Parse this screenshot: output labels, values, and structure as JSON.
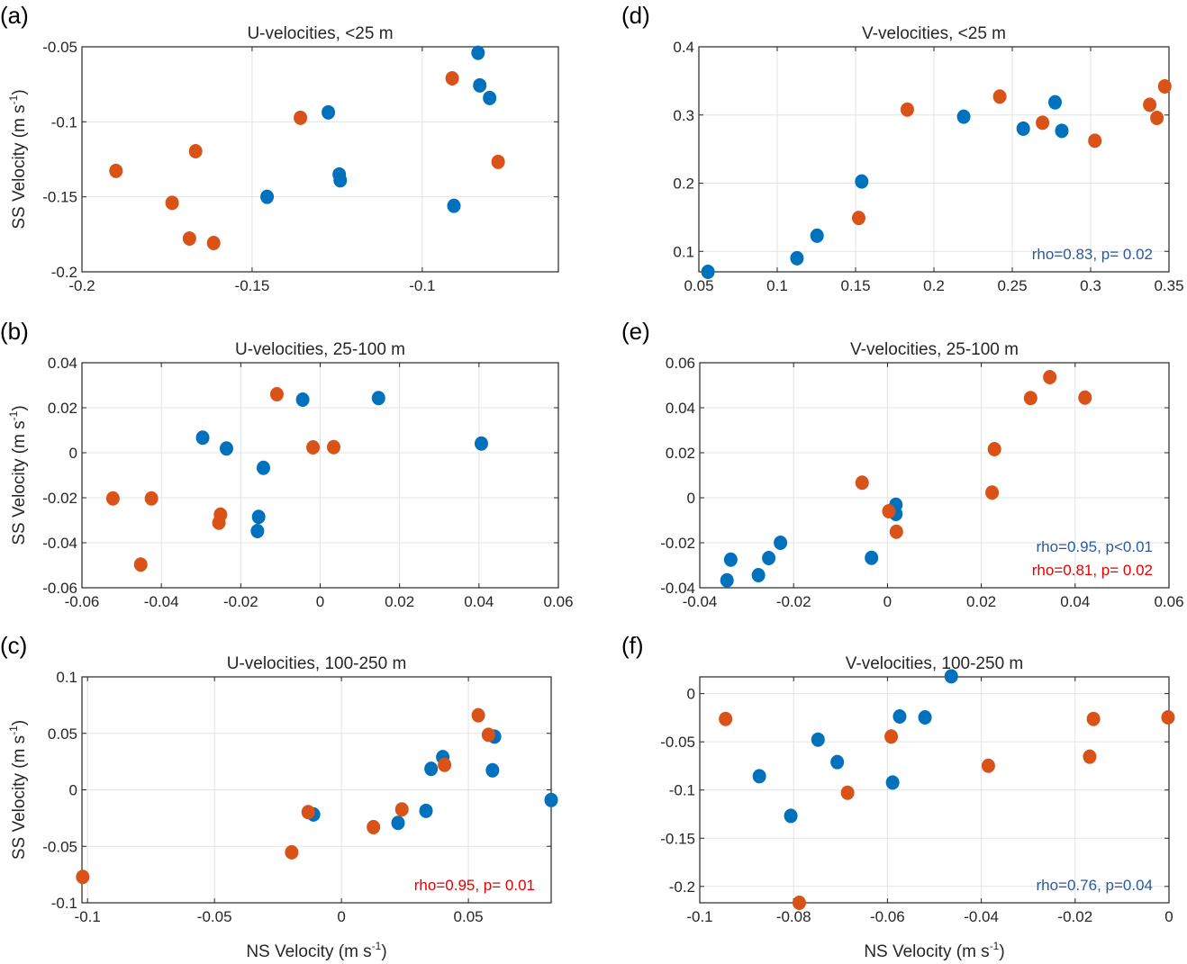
{
  "figure": {
    "colors": {
      "series_blue": "#0072BD",
      "series_orange": "#D95319",
      "annot_blue": "#2C5A99",
      "annot_red": "#E60000",
      "grid": "#e3e3e3",
      "axis": "#262626"
    },
    "ylabel": "SS Velocity (m s",
    "xlabel": "NS Velocity (m s",
    "unit_sup": "-1",
    "unit_close": ")"
  },
  "chart_data": [
    {
      "id": "a",
      "panel_label": "(a)",
      "type": "scatter",
      "title": "U-velocities, <25 m",
      "xlim": [
        -0.2,
        -0.06
      ],
      "ylim": [
        -0.2,
        -0.05
      ],
      "xticks": [
        -0.2,
        -0.15,
        -0.1
      ],
      "xtick_labels": [
        "-0.2",
        "-0.15",
        "-0.1"
      ],
      "yticks": [
        -0.2,
        -0.15,
        -0.1,
        -0.05
      ],
      "ytick_labels": [
        "-0.2",
        "-0.15",
        "-0.1",
        "-0.05"
      ],
      "show_ylabel": true,
      "show_xlabel": false,
      "grid": true,
      "series": [
        {
          "name": "blue",
          "x": [
            -0.0836,
            -0.0831,
            -0.0802,
            -0.1276,
            -0.1244,
            -0.1241,
            -0.1456,
            -0.0907
          ],
          "y": [
            -0.054,
            -0.0757,
            -0.0841,
            -0.0937,
            -0.1351,
            -0.139,
            -0.15,
            -0.156
          ]
        },
        {
          "name": "orange",
          "x": [
            -0.0912,
            -0.1358,
            -0.1666,
            -0.19,
            -0.1735,
            -0.1684,
            -0.1613,
            -0.0777
          ],
          "y": [
            -0.071,
            -0.0973,
            -0.1196,
            -0.1327,
            -0.154,
            -0.1778,
            -0.1808,
            -0.1267
          ]
        }
      ],
      "annotations": []
    },
    {
      "id": "b",
      "panel_label": "(b)",
      "type": "scatter",
      "title": "U-velocities, 25-100 m",
      "xlim": [
        -0.06,
        0.06
      ],
      "ylim": [
        -0.06,
        0.04
      ],
      "xticks": [
        -0.06,
        -0.04,
        -0.02,
        0,
        0.02,
        0.04,
        0.06
      ],
      "xtick_labels": [
        "-0.06",
        "-0.04",
        "-0.02",
        "0",
        "0.02",
        "0.04",
        "0.06"
      ],
      "yticks": [
        -0.06,
        -0.04,
        -0.02,
        0,
        0.02,
        0.04
      ],
      "ytick_labels": [
        "-0.06",
        "-0.04",
        "-0.02",
        "0",
        "0.02",
        "0.04"
      ],
      "show_ylabel": true,
      "show_xlabel": false,
      "grid": true,
      "series": [
        {
          "name": "blue",
          "x": [
            -0.0296,
            -0.0236,
            -0.0143,
            -0.0044,
            0.0147,
            -0.0155,
            -0.0158,
            0.0406
          ],
          "y": [
            0.0067,
            0.0019,
            -0.0067,
            0.0236,
            0.0243,
            -0.0285,
            -0.0348,
            0.0041
          ]
        },
        {
          "name": "orange",
          "x": [
            -0.0109,
            -0.0018,
            0.0034,
            -0.0522,
            -0.0425,
            -0.0251,
            -0.0255,
            -0.0452
          ],
          "y": [
            0.026,
            0.0024,
            0.0025,
            -0.0203,
            -0.0203,
            -0.0275,
            -0.0311,
            -0.0497
          ]
        }
      ],
      "annotations": []
    },
    {
      "id": "c",
      "panel_label": "(c)",
      "type": "scatter",
      "title": "U-velocities, 100-250 m",
      "xlim": [
        -0.1022,
        0.0826
      ],
      "ylim": [
        -0.1,
        0.1
      ],
      "xticks": [
        -0.1,
        -0.05,
        0,
        0.05
      ],
      "xtick_labels": [
        "-0.1",
        "-0.05",
        "0",
        "0.05"
      ],
      "yticks": [
        -0.1,
        -0.05,
        0,
        0.05,
        0.1
      ],
      "ytick_labels": [
        "-0.1",
        "-0.05",
        "0",
        "0.05",
        "0.1"
      ],
      "show_ylabel": true,
      "show_xlabel": true,
      "grid": true,
      "series": [
        {
          "name": "blue",
          "x": [
            -0.011,
            0.0223,
            0.0333,
            0.0353,
            0.0399,
            0.0603,
            0.0595,
            0.0826
          ],
          "y": [
            -0.0218,
            -0.0293,
            -0.0186,
            0.0186,
            0.029,
            0.0471,
            0.0173,
            -0.009
          ]
        },
        {
          "name": "orange",
          "x": [
            -0.1019,
            -0.0196,
            -0.0131,
            0.0126,
            0.0238,
            0.0406,
            0.0539,
            0.0579
          ],
          "y": [
            -0.0771,
            -0.0553,
            -0.0197,
            -0.033,
            -0.0173,
            0.0221,
            0.066,
            0.0487
          ]
        }
      ],
      "annotations": [
        {
          "text": "rho=0.95, p= 0.01",
          "color": "red",
          "position": "bottom-right"
        }
      ]
    },
    {
      "id": "d",
      "panel_label": "(d)",
      "type": "scatter",
      "title": "V-velocities, <25 m",
      "xlim": [
        0.05,
        0.35
      ],
      "ylim": [
        0.07,
        0.4
      ],
      "xticks": [
        0.05,
        0.1,
        0.15,
        0.2,
        0.25,
        0.3,
        0.35
      ],
      "xtick_labels": [
        "0.05",
        "0.1",
        "0.15",
        "0.2",
        "0.25",
        "0.3",
        "0.35"
      ],
      "yticks": [
        0.1,
        0.2,
        0.3,
        0.4
      ],
      "ytick_labels": [
        "0.1",
        "0.2",
        "0.3",
        "0.4"
      ],
      "show_ylabel": false,
      "show_xlabel": false,
      "grid": true,
      "series": [
        {
          "name": "blue",
          "x": [
            0.0558,
            0.1126,
            0.1254,
            0.1539,
            0.219,
            0.257,
            0.2773,
            0.2816
          ],
          "y": [
            0.07,
            0.09,
            0.123,
            0.2025,
            0.2975,
            0.28,
            0.3186,
            0.2768
          ]
        },
        {
          "name": "orange",
          "x": [
            0.152,
            0.183,
            0.242,
            0.2693,
            0.3027,
            0.3377,
            0.3423,
            0.3473
          ],
          "y": [
            0.149,
            0.308,
            0.327,
            0.2887,
            0.2623,
            0.315,
            0.2957,
            0.342
          ]
        }
      ],
      "annotations": [
        {
          "text": "rho=0.83, p= 0.02",
          "color": "blue",
          "position": "bottom-right"
        }
      ]
    },
    {
      "id": "e",
      "panel_label": "(e)",
      "type": "scatter",
      "title": "V-velocities, 25-100 m",
      "xlim": [
        -0.04,
        0.06
      ],
      "ylim": [
        -0.04,
        0.06
      ],
      "xticks": [
        -0.04,
        -0.02,
        0,
        0.02,
        0.04,
        0.06
      ],
      "xtick_labels": [
        "-0.04",
        "-0.02",
        "0",
        "0.02",
        "0.04",
        "0.06"
      ],
      "yticks": [
        -0.04,
        -0.02,
        0,
        0.02,
        0.04,
        0.06
      ],
      "ytick_labels": [
        "-0.04",
        "-0.02",
        "0",
        "0.02",
        "0.04",
        "0.06"
      ],
      "show_ylabel": false,
      "show_xlabel": false,
      "grid": true,
      "series": [
        {
          "name": "blue",
          "x": [
            -0.0342,
            -0.0334,
            -0.0275,
            -0.0253,
            -0.0228,
            -0.0034,
            0.0018,
            0.0018
          ],
          "y": [
            -0.0367,
            -0.0275,
            -0.0344,
            -0.0268,
            -0.02,
            -0.0267,
            -0.0031,
            -0.0072
          ]
        },
        {
          "name": "orange",
          "x": [
            -0.0054,
            0.0003,
            0.0019,
            0.0223,
            0.0228,
            0.0305,
            0.0346,
            0.0421
          ],
          "y": [
            0.0067,
            -0.006,
            -0.0151,
            0.0023,
            0.0216,
            0.0443,
            0.0536,
            0.0445
          ]
        }
      ],
      "annotations": [
        {
          "text": "rho=0.95, p<0.01",
          "color": "blue",
          "position": "bottom-right-upper"
        },
        {
          "text": "rho=0.81, p= 0.02",
          "color": "red",
          "position": "bottom-right"
        }
      ]
    },
    {
      "id": "f",
      "panel_label": "(f)",
      "type": "scatter",
      "title": "V-velocities, 100-250 m",
      "xlim": [
        -0.1,
        0
      ],
      "ylim": [
        -0.217,
        0.0174
      ],
      "xticks": [
        -0.1,
        -0.08,
        -0.06,
        -0.04,
        -0.02,
        0
      ],
      "xtick_labels": [
        "-0.1",
        "-0.08",
        "-0.06",
        "-0.04",
        "-0.02",
        "0"
      ],
      "yticks": [
        -0.2,
        -0.15,
        -0.1,
        -0.05,
        0
      ],
      "ytick_labels": [
        "-0.2",
        "-0.15",
        "-0.1",
        "-0.05",
        "0"
      ],
      "show_ylabel": false,
      "show_xlabel": true,
      "grid": true,
      "series": [
        {
          "name": "blue",
          "x": [
            -0.0873,
            -0.0806,
            -0.0748,
            -0.0707,
            -0.0589,
            -0.0574,
            -0.052,
            -0.0464
          ],
          "y": [
            -0.0857,
            -0.1268,
            -0.0477,
            -0.071,
            -0.0922,
            -0.0237,
            -0.0246,
            0.018
          ]
        },
        {
          "name": "orange",
          "x": [
            -0.0945,
            -0.0788,
            -0.0685,
            -0.0592,
            -0.0385,
            -0.0169,
            -0.0161,
            -0.0002
          ],
          "y": [
            -0.0262,
            -0.217,
            -0.1028,
            -0.0445,
            -0.0748,
            -0.0654,
            -0.0262,
            -0.0246
          ]
        }
      ],
      "annotations": [
        {
          "text": "rho=0.76, p=0.04",
          "color": "blue",
          "position": "bottom-right"
        }
      ]
    }
  ]
}
